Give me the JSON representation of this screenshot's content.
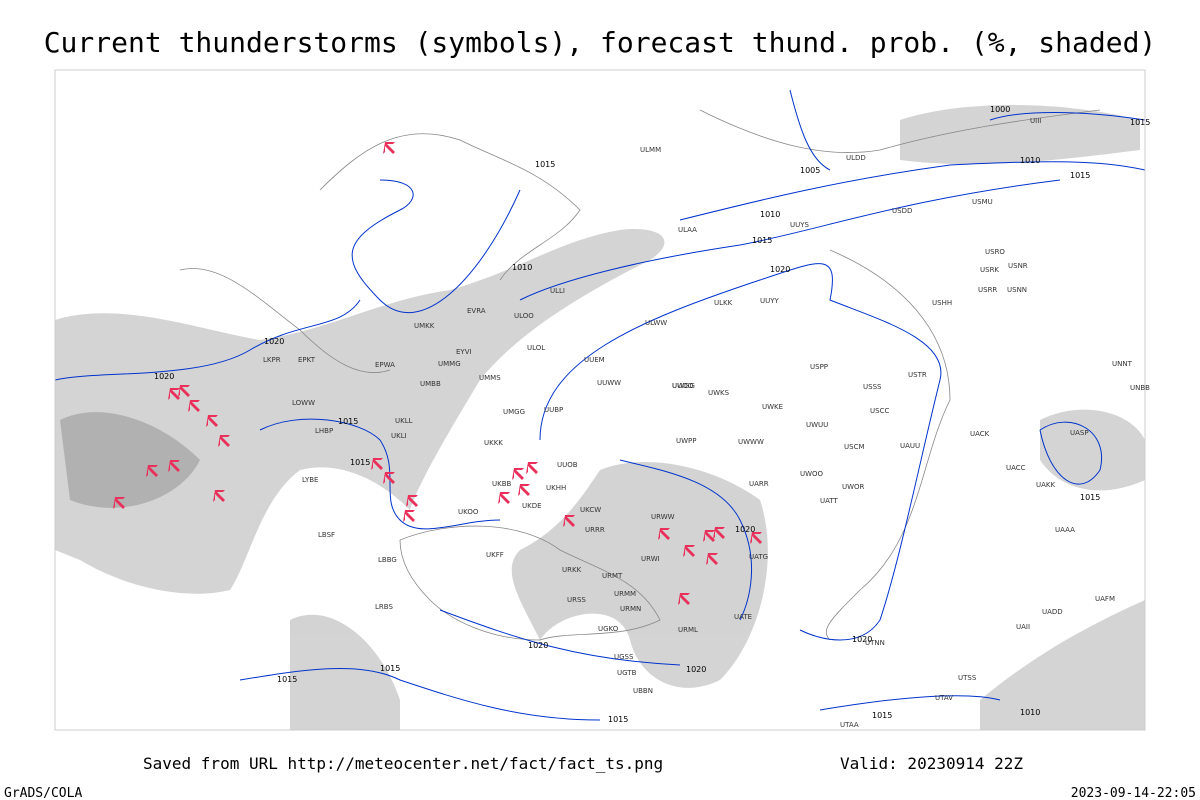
{
  "header": {
    "title": "Current thunderstorms (symbols), forecast thund. prob. (%, shaded)"
  },
  "map": {
    "isobar_labels": [
      "1000",
      "1005",
      "1010",
      "1015",
      "1020",
      "1010",
      "1015",
      "1020",
      "1015",
      "1010",
      "1020",
      "1020",
      "1015",
      "1020",
      "1015",
      "1015",
      "1020",
      "1020",
      "1015",
      "1015",
      "1015",
      "1015",
      "1010",
      "1020",
      "1015"
    ],
    "stations": [
      "ULMM",
      "ULAA",
      "ULLI",
      "ULOO",
      "ULOL",
      "UUEM",
      "UUWW",
      "UUOO",
      "UUBP",
      "UUOB",
      "UKKK",
      "UKBB",
      "UKHH",
      "UKCW",
      "UKDE",
      "UKOO",
      "UKFF",
      "URRR",
      "URWW",
      "URWI",
      "URMT",
      "URMM",
      "URMN",
      "URKK",
      "URSS",
      "URML",
      "UGKO",
      "UGSS",
      "UGTB",
      "UBBN",
      "UATE",
      "UATG",
      "UARR",
      "UWOO",
      "UWOR",
      "UATT",
      "USCM",
      "UAUU",
      "USTR",
      "USSS",
      "USCC",
      "USPP",
      "UWKE",
      "UWKS",
      "UWUU",
      "UWWW",
      "UWPP",
      "UWGG",
      "UMMS",
      "UMGG",
      "UMBB",
      "UMMG",
      "UMKK",
      "EVRA",
      "EYVI",
      "EPWA",
      "EPKT",
      "LKPR",
      "LOWW",
      "LHBP",
      "LYBE",
      "LBSF",
      "LBBG",
      "LRBS",
      "UKLL",
      "UKLI",
      "UACK",
      "UACC",
      "UAKK",
      "UAAA",
      "UASP",
      "UNBB",
      "UNNT",
      "UAFM",
      "UAII",
      "UADD",
      "UTSS",
      "UTAA",
      "UTAV",
      "UTNN",
      "UUYY",
      "ULKK",
      "ULWW",
      "USHH",
      "USRR",
      "USNN",
      "USRK",
      "USNR",
      "USRO",
      "USMU",
      "USDD",
      "UUYS",
      "ULDD",
      "UIII"
    ]
  },
  "footer": {
    "source": "Saved from URL http://meteocenter.net/fact/fact_ts.png",
    "valid": "Valid: 20230914 22Z",
    "software": "GrADS/COLA",
    "timestamp": "2023-09-14-22:05"
  }
}
